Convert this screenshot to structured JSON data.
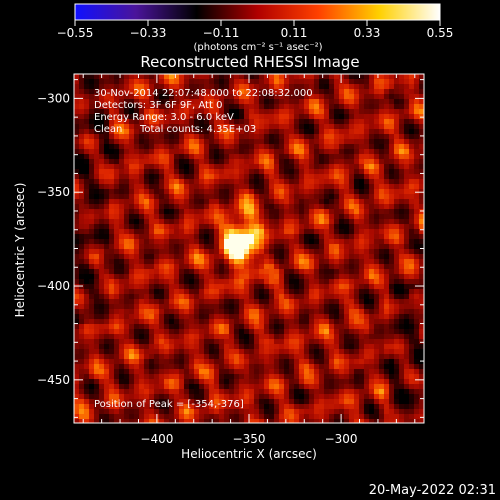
{
  "chart_data": {
    "type": "heatmap",
    "title": "Reconstructed RHESSI Image",
    "xlabel": "Heliocentric X (arcsec)",
    "ylabel": "Heliocentric Y (arcsec)",
    "xlim": [
      -445,
      -255
    ],
    "ylim": [
      -473,
      -287
    ],
    "x_ticks": [
      {
        "value": -400,
        "label": "−400"
      },
      {
        "value": -350,
        "label": "−350"
      },
      {
        "value": -300,
        "label": "−300"
      }
    ],
    "y_ticks": [
      {
        "value": -300,
        "label": "−300"
      },
      {
        "value": -350,
        "label": "−350"
      },
      {
        "value": -400,
        "label": "−400"
      },
      {
        "value": -450,
        "label": "−450"
      }
    ],
    "peak": {
      "x": -354,
      "y": -376,
      "value": 0.55
    },
    "source_extent": {
      "x_sigma": 7,
      "y_sigma": 11
    },
    "colorbar": {
      "range": [
        -0.55,
        0.55
      ],
      "tick_labels": [
        "−0.55",
        "−0.33",
        "−0.11",
        "0.11",
        "0.33",
        "0.55"
      ],
      "unit_label": "(photons cm⁻² s⁻¹ asec⁻²)",
      "colors": [
        "#1010ff",
        "#4a149a",
        "#000000",
        "#b00000",
        "#ff4000",
        "#ffd000",
        "#ffffff"
      ]
    },
    "annotations": {
      "time_range": "30-Nov-2014 22:07:48.000 to 22:08:32.000",
      "detectors": "Detectors: 3F 6F 9F, Att 0",
      "energy": "Energy Range: 3.0 - 6.0 keV",
      "clean_label": "Clean",
      "total_counts": "Total counts: 4.35E+03",
      "peak_position": "Position of Peak = [-354,-376]"
    }
  },
  "footer": {
    "timestamp": "20-May-2022 02:31"
  }
}
